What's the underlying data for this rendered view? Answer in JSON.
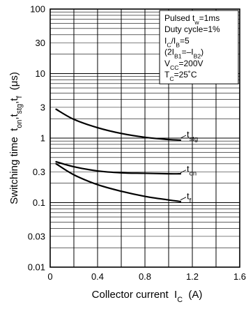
{
  "chart_data": {
    "type": "line",
    "title": "",
    "xlabel": "Collector current",
    "xlabel_symbol": {
      "main": "I",
      "sub": "C"
    },
    "xlabel_unit": "(A)",
    "ylabel_prefix": "Switching time",
    "ylabel_symbols": [
      {
        "main": "t",
        "sub": "on"
      },
      {
        "main": ",t",
        "sub": "stg"
      },
      {
        "main": ",t",
        "sub": "f"
      }
    ],
    "ylabel_unit": "(μs)",
    "xlim": [
      0,
      1.6
    ],
    "ylim": [
      0.01,
      100
    ],
    "y_scale": "log",
    "grid": true,
    "x_ticks": [
      {
        "value": 0,
        "label": "0"
      },
      {
        "value": 0.4,
        "label": "0.4"
      },
      {
        "value": 0.8,
        "label": "0.8"
      },
      {
        "value": 1.2,
        "label": "1.2"
      },
      {
        "value": 1.6,
        "label": "1.6"
      }
    ],
    "y_ticks": [
      {
        "value": 100,
        "label": "100"
      },
      {
        "value": 30,
        "label": "30"
      },
      {
        "value": 10,
        "label": "10"
      },
      {
        "value": 3,
        "label": "3"
      },
      {
        "value": 1,
        "label": "1"
      },
      {
        "value": 0.3,
        "label": "0.3"
      },
      {
        "value": 0.1,
        "label": "0.1"
      },
      {
        "value": 0.03,
        "label": "0.03"
      },
      {
        "value": 0.01,
        "label": "0.01"
      }
    ],
    "series": [
      {
        "name": "t_stg",
        "label": {
          "main": "t",
          "sub": "stg"
        },
        "label_anchor": [
          1.1,
          1.0
        ],
        "x": [
          0.05,
          0.2,
          0.4,
          0.6,
          0.8,
          1.0,
          1.1
        ],
        "y": [
          2.8,
          1.95,
          1.45,
          1.18,
          1.03,
          0.95,
          0.93
        ]
      },
      {
        "name": "t_on",
        "label": {
          "main": "t",
          "sub": "on"
        },
        "label_anchor": [
          1.1,
          0.29
        ],
        "x": [
          0.05,
          0.2,
          0.4,
          0.6,
          0.8,
          1.0,
          1.1
        ],
        "y": [
          0.43,
          0.36,
          0.31,
          0.29,
          0.285,
          0.28,
          0.28
        ]
      },
      {
        "name": "t_f",
        "label": {
          "main": "t",
          "sub": "f"
        },
        "label_anchor": [
          1.1,
          0.11
        ],
        "x": [
          0.05,
          0.2,
          0.4,
          0.6,
          0.8,
          1.0,
          1.1
        ],
        "y": [
          0.4,
          0.27,
          0.19,
          0.15,
          0.125,
          0.11,
          0.104
        ]
      }
    ],
    "conditions": [
      [
        {
          "t": "Pulsed t"
        },
        {
          "t": "w",
          "sub": true
        },
        {
          "t": "=1ms"
        }
      ],
      [
        {
          "t": "Duty cycle=1%"
        }
      ],
      [
        {
          "t": "I"
        },
        {
          "t": "C",
          "sub": true
        },
        {
          "t": "/I"
        },
        {
          "t": "B",
          "sub": true
        },
        {
          "t": "=5"
        }
      ],
      [
        {
          "t": "(2I"
        },
        {
          "t": "B1",
          "sub": true
        },
        {
          "t": "=–I"
        },
        {
          "t": "B2",
          "sub": true
        },
        {
          "t": ")"
        }
      ],
      [
        {
          "t": "V"
        },
        {
          "t": "CC",
          "sub": true
        },
        {
          "t": "=200V"
        }
      ],
      [
        {
          "t": "T"
        },
        {
          "t": "C",
          "sub": true
        },
        {
          "t": "=25˚C"
        }
      ]
    ]
  }
}
